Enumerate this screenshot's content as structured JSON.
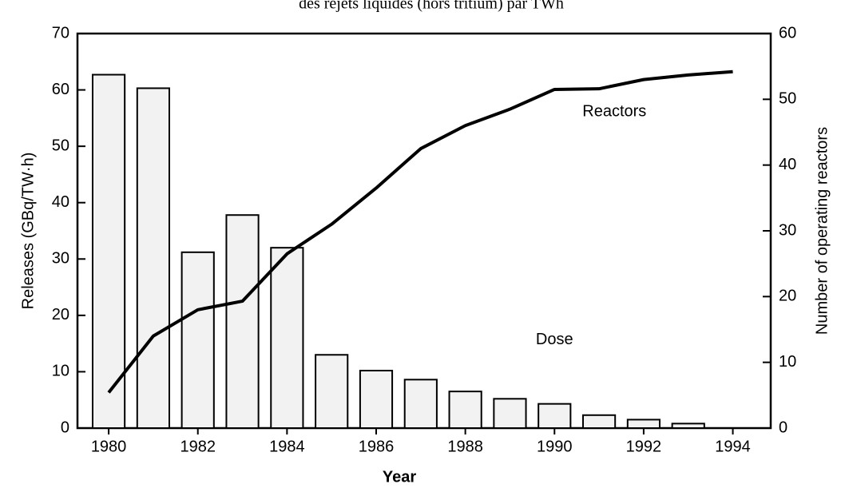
{
  "chart_data": {
    "type": "bar",
    "title": "des rejets liquides (hors tritium) par TWh",
    "x_label": "Year",
    "y_label": "Releases (GBq/TW·h)",
    "y2_label": "Number of operating reactors",
    "x": [
      1980,
      1981,
      1982,
      1983,
      1984,
      1985,
      1986,
      1987,
      1988,
      1989,
      1990,
      1991,
      1992,
      1993
    ],
    "series": [
      {
        "name": "Dose",
        "type": "bar",
        "color": "#f2f2f2",
        "values": [
          62.7,
          60.3,
          31.2,
          37.8,
          32,
          13,
          10.2,
          8.6,
          6.5,
          5.2,
          4.3,
          2.3,
          1.5,
          0.8
        ]
      },
      {
        "name": "Reactors",
        "type": "line",
        "color": "#000000",
        "axis": "y2",
        "x": [
          1980,
          1981,
          1982,
          1983,
          1984,
          1985,
          1986,
          1987,
          1988,
          1989,
          1990,
          1991,
          1992,
          1993,
          1994
        ],
        "values": [
          5.4,
          14,
          18,
          19.3,
          26.5,
          31,
          36.5,
          42.5,
          46,
          48.5,
          51.5,
          51.6,
          53,
          53.7,
          54.2
        ]
      }
    ],
    "xlim": [
      1979.3,
      1994.85
    ],
    "xticks": [
      1980,
      1982,
      1984,
      1986,
      1988,
      1990,
      1992,
      1994
    ],
    "ylim": [
      0,
      70
    ],
    "yticks": [
      0,
      10,
      20,
      30,
      40,
      50,
      60,
      70
    ],
    "y2lim": [
      0,
      60
    ],
    "y2ticks": [
      0,
      10,
      20,
      30,
      40,
      50,
      60
    ],
    "grid": false
  }
}
